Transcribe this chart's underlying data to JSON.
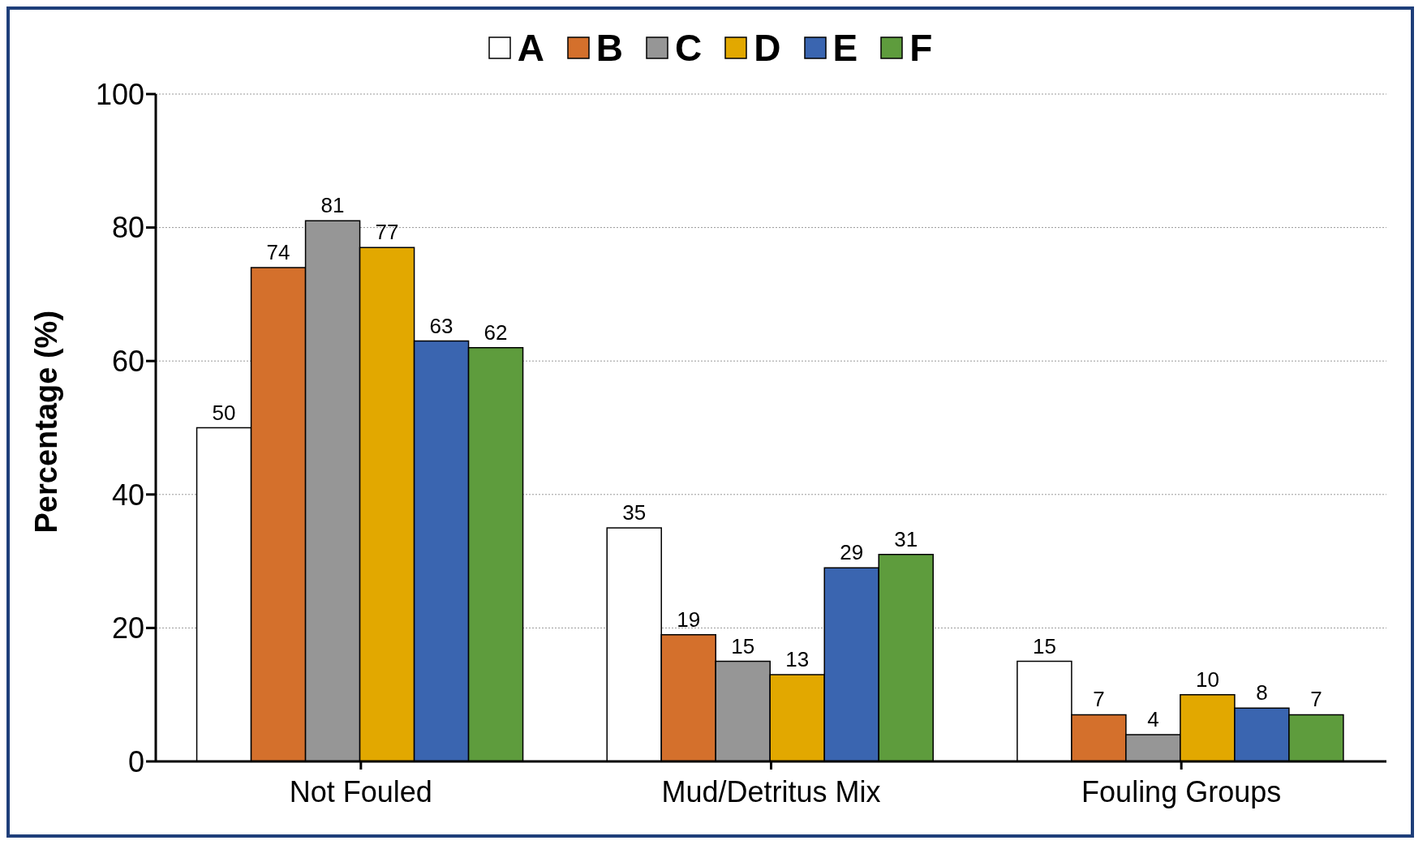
{
  "chart_data": {
    "type": "bar",
    "ylabel": "Percentage (%)",
    "categories": [
      "Not Fouled",
      "Mud/Detritus Mix",
      "Fouling Groups"
    ],
    "series": [
      {
        "name": "A",
        "color": "#ffffff",
        "values": [
          50,
          35,
          15
        ]
      },
      {
        "name": "B",
        "color": "#d4702c",
        "values": [
          74,
          19,
          7
        ]
      },
      {
        "name": "C",
        "color": "#969696",
        "values": [
          81,
          15,
          4
        ]
      },
      {
        "name": "D",
        "color": "#e2a800",
        "values": [
          77,
          13,
          10
        ]
      },
      {
        "name": "E",
        "color": "#3a65b0",
        "values": [
          63,
          29,
          8
        ]
      },
      {
        "name": "F",
        "color": "#5e9c3d",
        "values": [
          62,
          31,
          7
        ]
      }
    ],
    "ylim": [
      0,
      100
    ],
    "yticks": [
      0,
      20,
      40,
      60,
      80,
      100
    ],
    "grid": "y",
    "legend": "top",
    "data_labels": true
  }
}
